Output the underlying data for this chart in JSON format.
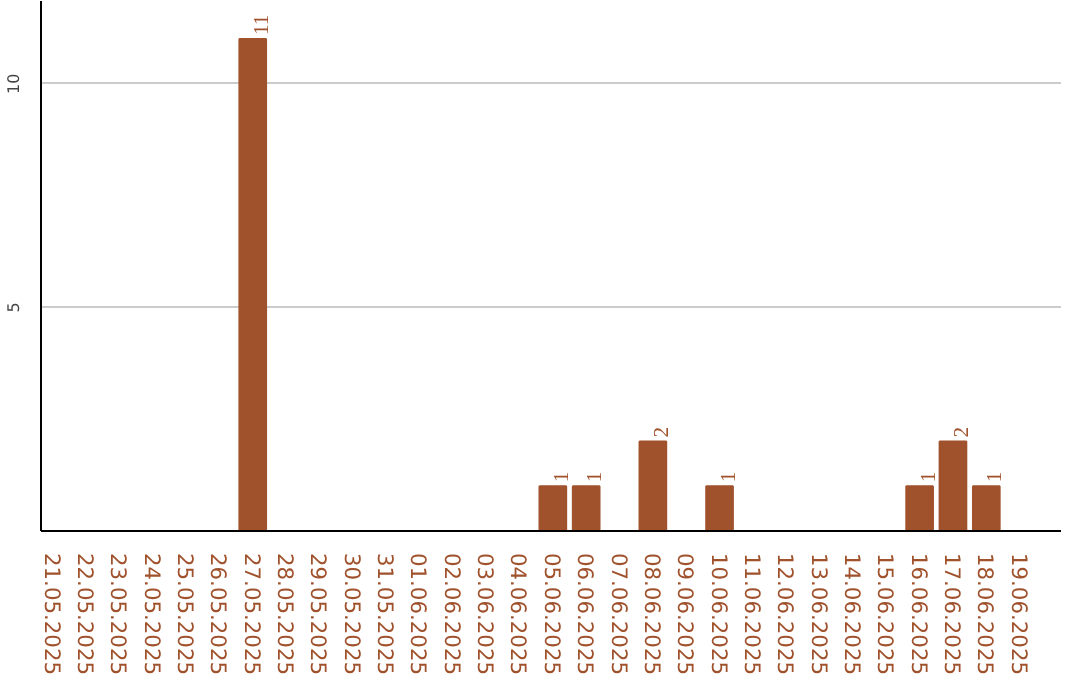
{
  "chart_data": {
    "type": "bar",
    "categories": [
      "21.05.2025",
      "22.05.2025",
      "23.05.2025",
      "24.05.2025",
      "25.05.2025",
      "26.05.2025",
      "27.05.2025",
      "28.05.2025",
      "29.05.2025",
      "30.05.2025",
      "31.05.2025",
      "01.06.2025",
      "02.06.2025",
      "03.06.2025",
      "04.06.2025",
      "05.06.2025",
      "06.06.2025",
      "07.06.2025",
      "08.06.2025",
      "09.06.2025",
      "10.06.2025",
      "11.06.2025",
      "12.06.2025",
      "13.06.2025",
      "14.06.2025",
      "15.06.2025",
      "16.06.2025",
      "17.06.2025",
      "18.06.2025",
      "19.06.2025"
    ],
    "values": [
      0,
      0,
      0,
      0,
      0,
      0,
      11,
      0,
      0,
      0,
      0,
      0,
      0,
      0,
      0,
      1,
      1,
      0,
      2,
      0,
      1,
      0,
      0,
      0,
      0,
      0,
      1,
      2,
      1,
      0
    ],
    "value_labels": [
      null,
      null,
      null,
      null,
      null,
      null,
      "11",
      null,
      null,
      null,
      null,
      null,
      null,
      null,
      null,
      "1",
      "1",
      null,
      "2",
      null,
      "1",
      null,
      null,
      null,
      null,
      null,
      "1",
      "2",
      "1",
      null
    ],
    "color": "#a0522d",
    "ylim": [
      0,
      11.85
    ],
    "yticks": [
      5,
      10
    ],
    "grid": "y"
  }
}
